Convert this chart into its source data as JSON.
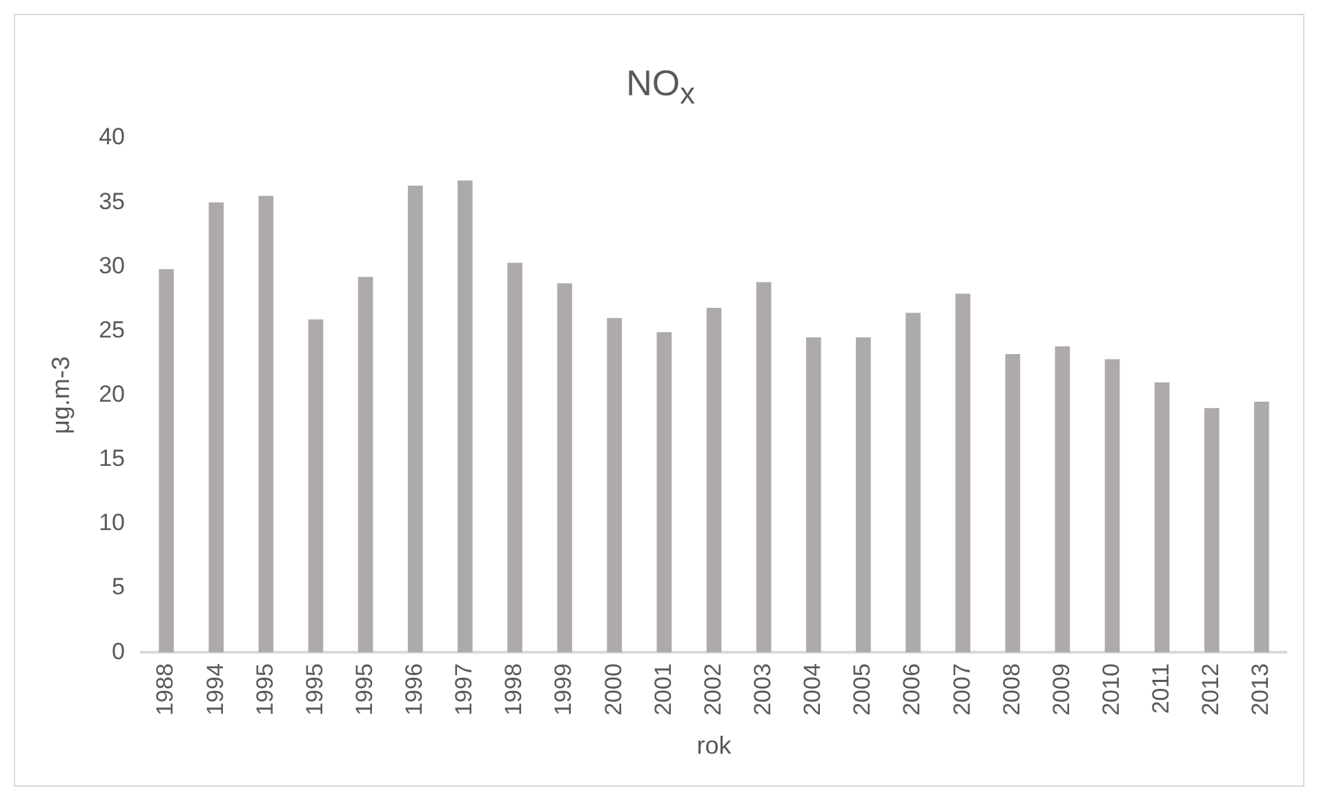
{
  "chart_data": {
    "type": "bar",
    "title": "NO$_{x}$",
    "xlabel": "rok",
    "ylabel": "μg.m-3",
    "categories": [
      "1988",
      "1994",
      "1995",
      "1995",
      "1995",
      "1996",
      "1997",
      "1998",
      "1999",
      "2000",
      "2001",
      "2002",
      "2003",
      "2004",
      "2005",
      "2006",
      "2007",
      "2008",
      "2009",
      "2010",
      "2011",
      "2012",
      "2013"
    ],
    "values": [
      29.8,
      35.0,
      35.5,
      25.9,
      29.2,
      36.3,
      36.7,
      30.3,
      28.7,
      26.0,
      24.9,
      26.8,
      28.8,
      24.5,
      24.5,
      26.4,
      27.9,
      23.2,
      23.8,
      22.8,
      21.0,
      19.0,
      19.5
    ],
    "color": "#aeaaaa",
    "ylim": [
      0,
      40
    ],
    "yticks": [
      0,
      5,
      10,
      15,
      20,
      25,
      30,
      35,
      40
    ],
    "grid": false,
    "legend": false
  }
}
